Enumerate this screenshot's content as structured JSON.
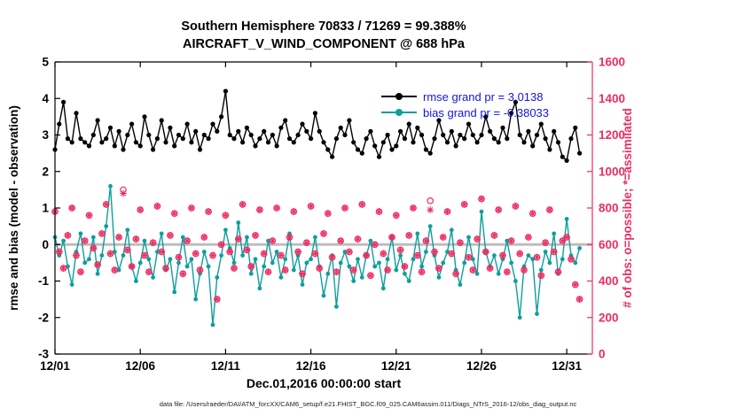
{
  "header": {
    "title_line1": "Southern Hemisphere 70833 / 71269 = 99.388%",
    "title_line2": "AIRCRAFT_V_WIND_COMPONENT @ 688 hPa"
  },
  "legend": {
    "text_color": "#1414e0",
    "items": [
      {
        "label": "rmse grand pr = 3.0138",
        "color": "#000000"
      },
      {
        "label": "bias grand pr = -0.38033",
        "color": "#0f9e9e"
      }
    ]
  },
  "footer": {
    "text": "data file: /Users/raeder/DAI/ATM_forcXX/CAM6_setup/f.e21.FHIST_BGC.f09_025.CAM6assim.011/Diags_NTrS_2016-12/obs_diag_output.nc"
  },
  "chart_data": {
    "type": "line",
    "title": "Southern Hemisphere 70833 / 71269 = 99.388%",
    "subtitle": "AIRCRAFT_V_WIND_COMPONENT @ 688 hPa",
    "x_start_day": 0,
    "x_step_days": 0.25,
    "x_axis": {
      "label": "Dec.01,2016 00:00:00 start",
      "tick_labels": [
        "12/01",
        "12/06",
        "12/11",
        "12/16",
        "12/21",
        "12/26",
        "12/31"
      ],
      "tick_days": [
        0,
        5,
        10,
        15,
        20,
        25,
        30
      ],
      "range_days": [
        0,
        31.5
      ]
    },
    "y_left": {
      "label": "rmse and bias (model - observation)",
      "range": [
        -3,
        5
      ],
      "ticks": [
        -3,
        -2,
        -1,
        0,
        1,
        2,
        3,
        4,
        5
      ],
      "color": "#000000"
    },
    "y_right": {
      "label": "# of obs: o=possible; *=assimilated",
      "range": [
        0,
        1600
      ],
      "ticks": [
        0,
        200,
        400,
        600,
        800,
        1000,
        1200,
        1400,
        1600
      ],
      "color": "#ec2d62"
    },
    "zero_line": {
      "value": 0,
      "color": "#bdbdbd"
    },
    "grid": false,
    "legend_position": "top-right-inside",
    "series": [
      {
        "name": "rmse",
        "axis": "left",
        "color": "#000000",
        "marker": "dot",
        "values": [
          2.6,
          3.3,
          3.9,
          2.9,
          2.8,
          3.6,
          2.9,
          2.8,
          2.7,
          3.0,
          3.4,
          2.8,
          2.9,
          3.2,
          2.7,
          3.1,
          2.6,
          3.0,
          3.3,
          2.8,
          2.7,
          3.5,
          3.0,
          2.6,
          2.9,
          3.4,
          2.8,
          3.2,
          2.7,
          3.0,
          2.9,
          3.3,
          2.8,
          3.1,
          2.6,
          3.0,
          2.9,
          3.3,
          3.1,
          3.5,
          4.2,
          3.0,
          2.9,
          3.1,
          2.8,
          3.2,
          3.0,
          2.7,
          2.9,
          3.1,
          2.8,
          3.0,
          2.7,
          3.2,
          3.4,
          2.9,
          2.8,
          3.0,
          3.3,
          3.1,
          2.9,
          3.6,
          3.1,
          2.8,
          2.6,
          2.4,
          2.9,
          3.2,
          3.0,
          3.4,
          2.8,
          2.6,
          2.5,
          2.9,
          3.1,
          2.7,
          2.4,
          2.8,
          3.0,
          2.6,
          2.7,
          3.1,
          2.9,
          3.3,
          2.8,
          3.2,
          3.0,
          2.6,
          2.5,
          2.9,
          3.4,
          3.0,
          2.8,
          3.1,
          2.7,
          3.0,
          2.9,
          3.3,
          3.0,
          2.8,
          3.0,
          3.5,
          3.1,
          2.9,
          2.8,
          3.2,
          2.9,
          3.6,
          3.9,
          3.0,
          2.8,
          3.1,
          2.7,
          3.0,
          3.3,
          2.9,
          2.6,
          3.1,
          2.8,
          2.4,
          2.3,
          2.9,
          3.2,
          2.5
        ]
      },
      {
        "name": "bias",
        "axis": "left",
        "color": "#0f9e9e",
        "marker": "dot",
        "values": [
          0.2,
          -0.3,
          0.1,
          -0.6,
          -1.1,
          -0.2,
          0.3,
          -0.5,
          -0.4,
          0.2,
          -0.8,
          -0.3,
          0.5,
          1.6,
          -0.2,
          -0.7,
          -0.3,
          0.4,
          -0.6,
          -1.0,
          -0.5,
          0.1,
          -0.4,
          -0.9,
          -0.2,
          0.3,
          -0.7,
          -0.4,
          -1.3,
          -0.5,
          0.2,
          -0.6,
          -0.4,
          -1.5,
          -0.8,
          -0.2,
          -0.6,
          -2.2,
          -0.9,
          -0.3,
          0.4,
          -0.1,
          -0.5,
          0.6,
          -0.3,
          0.2,
          -0.8,
          -0.4,
          -1.2,
          -0.6,
          0.1,
          -0.5,
          -0.2,
          -0.9,
          -0.4,
          0.3,
          -0.7,
          -0.3,
          -1.1,
          -0.5,
          -0.4,
          0.2,
          -0.6,
          -1.4,
          -0.8,
          -0.3,
          -1.7,
          -0.5,
          -0.2,
          -0.6,
          -1.0,
          -0.4,
          -0.9,
          -0.3,
          0.1,
          -0.6,
          -0.5,
          -1.2,
          -0.4,
          0.2,
          -0.7,
          -0.3,
          -0.8,
          -1.0,
          -0.4,
          0.3,
          -0.6,
          -0.2,
          0.5,
          -0.3,
          -0.9,
          -0.5,
          -0.2,
          0.4,
          -0.7,
          -1.1,
          -0.5,
          0.2,
          -0.4,
          -0.8,
          0.9,
          -0.2,
          -0.6,
          -0.3,
          -0.8,
          -0.4,
          0.1,
          -0.5,
          -1.0,
          -2.0,
          -0.6,
          -0.3,
          -0.4,
          -1.9,
          -0.7,
          -0.2,
          -0.5,
          0.3,
          -0.8,
          -0.4,
          0.7,
          -0.3,
          -0.5,
          -0.1
        ]
      },
      {
        "name": "possible_obs",
        "axis": "right",
        "color": "#ec2d62",
        "marker": "circle",
        "values": [
          780,
          560,
          470,
          650,
          800,
          540,
          450,
          620,
          760,
          580,
          490,
          660,
          820,
          550,
          460,
          640,
          900,
          570,
          480,
          630,
          790,
          540,
          450,
          610,
          810,
          560,
          470,
          650,
          770,
          530,
          440,
          620,
          800,
          550,
          460,
          640,
          780,
          540,
          300,
          600,
          760,
          560,
          470,
          630,
          820,
          570,
          480,
          650,
          790,
          550,
          450,
          620,
          800,
          540,
          460,
          640,
          780,
          560,
          440,
          610,
          810,
          550,
          470,
          660,
          770,
          530,
          450,
          620,
          800,
          560,
          460,
          630,
          820,
          540,
          430,
          600,
          780,
          550,
          460,
          640,
          760,
          570,
          480,
          650,
          800,
          540,
          450,
          620,
          840,
          560,
          470,
          640,
          780,
          550,
          440,
          610,
          820,
          530,
          460,
          630,
          850,
          560,
          470,
          650,
          790,
          540,
          450,
          620,
          810,
          550,
          460,
          640,
          770,
          530,
          430,
          610,
          790,
          560,
          450,
          620,
          640,
          520,
          380,
          300
        ]
      },
      {
        "name": "assimilated_obs",
        "axis": "right",
        "color": "#ec2d62",
        "marker": "asterisk",
        "values": [
          780,
          560,
          470,
          650,
          800,
          540,
          450,
          620,
          760,
          580,
          490,
          660,
          820,
          550,
          460,
          640,
          880,
          570,
          480,
          630,
          790,
          540,
          450,
          610,
          810,
          560,
          470,
          650,
          770,
          530,
          440,
          620,
          800,
          550,
          460,
          640,
          780,
          540,
          300,
          600,
          760,
          560,
          470,
          630,
          820,
          570,
          480,
          650,
          790,
          550,
          450,
          620,
          800,
          540,
          460,
          640,
          780,
          560,
          440,
          610,
          810,
          550,
          470,
          660,
          770,
          530,
          450,
          620,
          800,
          560,
          460,
          630,
          820,
          540,
          430,
          600,
          780,
          550,
          460,
          640,
          760,
          570,
          480,
          650,
          800,
          540,
          450,
          620,
          790,
          560,
          470,
          640,
          780,
          550,
          440,
          610,
          820,
          530,
          460,
          630,
          850,
          560,
          470,
          650,
          790,
          540,
          450,
          620,
          810,
          550,
          460,
          640,
          770,
          530,
          430,
          610,
          790,
          560,
          450,
          620,
          640,
          520,
          380,
          300
        ]
      }
    ]
  }
}
